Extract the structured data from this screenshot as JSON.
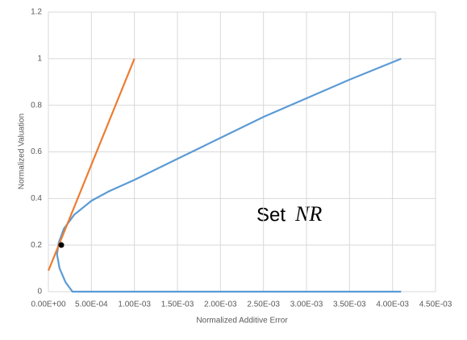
{
  "chart_data": {
    "type": "line",
    "x_label": "Normalized Additive Error",
    "y_label": "Normalized Valuation",
    "annotation": "Set",
    "annotation_math": "NR",
    "xlim": [
      0,
      0.0045
    ],
    "xticks": [
      {
        "value": 0,
        "label": "0.00E+00"
      },
      {
        "value": 0.0005,
        "label": "5.00E-04"
      },
      {
        "value": 0.001,
        "label": "1.00E-03"
      },
      {
        "value": 0.0015,
        "label": "1.50E-03"
      },
      {
        "value": 0.002,
        "label": "2.00E-03"
      },
      {
        "value": 0.0025,
        "label": "2.50E-03"
      },
      {
        "value": 0.003,
        "label": "3.00E-03"
      },
      {
        "value": 0.0035,
        "label": "3.50E-03"
      },
      {
        "value": 0.004,
        "label": "4.00E-03"
      },
      {
        "value": 0.0045,
        "label": "4.50E-03"
      }
    ],
    "ylim": [
      0,
      1.2
    ],
    "yticks": [
      0,
      0.2,
      0.4,
      0.6,
      0.8,
      1,
      1.2
    ],
    "grid": true,
    "series": [
      {
        "color": "#5b9bd5",
        "mode": "line",
        "x": [
          0.0041,
          0.0035,
          0.003,
          0.0025,
          0.002,
          0.0015,
          0.001,
          0.0007,
          0.0005,
          0.0003,
          0.00018,
          0.00012,
          0.0001,
          0.00013,
          0.0002,
          0.00028,
          0.0041
        ],
        "values": [
          1.0,
          0.91,
          0.83,
          0.75,
          0.66,
          0.57,
          0.48,
          0.43,
          0.39,
          0.33,
          0.27,
          0.21,
          0.16,
          0.1,
          0.04,
          0,
          0
        ]
      },
      {
        "color": "#ed7d31",
        "mode": "line",
        "x": [
          0,
          0.001
        ],
        "values": [
          0.09,
          1.0
        ]
      },
      {
        "color": "#000000",
        "mode": "marker",
        "x": [
          0.00015
        ],
        "values": [
          0.2
        ]
      }
    ]
  }
}
